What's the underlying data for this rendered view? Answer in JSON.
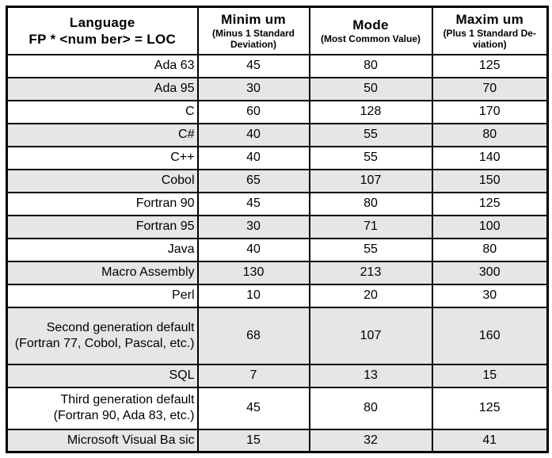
{
  "colors": {
    "row_shade": "#e6e6e6",
    "border": "#000000",
    "background": "#ffffff",
    "text": "#000000"
  },
  "table": {
    "header": {
      "language_line1": "Language",
      "language_line2": "FP * <num ber> = LOC",
      "minimum_title": "Minim um",
      "minimum_sub1": "(Minus 1 Standard",
      "minimum_sub2": "Deviation)",
      "mode_title": "Mode",
      "mode_sub1": "(Most Common Value)",
      "mode_sub2": "",
      "maximum_title": "Maxim um",
      "maximum_sub1": "(Plus 1 Standard De-",
      "maximum_sub2": "viation)"
    },
    "rows": [
      {
        "language": "Ada 63",
        "minimum": "45",
        "mode": "80",
        "maximum": "125"
      },
      {
        "language": "Ada 95",
        "minimum": "30",
        "mode": "50",
        "maximum": "70"
      },
      {
        "language": "C",
        "minimum": "60",
        "mode": "128",
        "maximum": "170"
      },
      {
        "language": "C#",
        "minimum": "40",
        "mode": "55",
        "maximum": "80"
      },
      {
        "language": "C++",
        "minimum": "40",
        "mode": "55",
        "maximum": "140"
      },
      {
        "language": "Cobol",
        "minimum": "65",
        "mode": "107",
        "maximum": "150"
      },
      {
        "language": "Fortran 90",
        "minimum": "45",
        "mode": "80",
        "maximum": "125"
      },
      {
        "language": "Fortran 95",
        "minimum": "30",
        "mode": "71",
        "maximum": "100"
      },
      {
        "language": "Java",
        "minimum": "40",
        "mode": "55",
        "maximum": "80"
      },
      {
        "language": "Macro Assembly",
        "minimum": "130",
        "mode": "213",
        "maximum": "300"
      },
      {
        "language": "Perl",
        "minimum": "10",
        "mode": "20",
        "maximum": "30"
      },
      {
        "language": "Second generation default (Fortran 77, Cobol, Pascal, etc.)",
        "minimum": "68",
        "mode": "107",
        "maximum": "160"
      },
      {
        "language": "SQL",
        "minimum": "7",
        "mode": "13",
        "maximum": "15"
      },
      {
        "language": "Third generation default (Fortran 90, Ada 83, etc.)",
        "minimum": "45",
        "mode": "80",
        "maximum": "125"
      },
      {
        "language": "Microsoft Visual Ba sic",
        "minimum": "15",
        "mode": "32",
        "maximum": "41"
      }
    ]
  }
}
